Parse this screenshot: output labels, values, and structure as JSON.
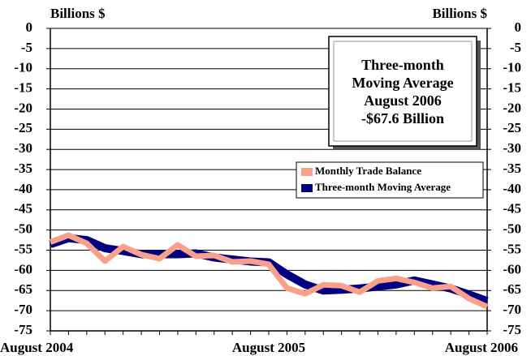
{
  "chart_data": {
    "type": "line",
    "y_axis_label": "Billions $",
    "y2_axis_label": "Billions $",
    "annotation": [
      "Three-month",
      "Moving Average",
      "August 2006",
      "-$67.6 Billion"
    ],
    "categories": [
      "August 2004",
      null,
      null,
      null,
      null,
      null,
      null,
      null,
      null,
      null,
      null,
      null,
      "August 2005",
      null,
      null,
      null,
      null,
      null,
      null,
      null,
      null,
      null,
      null,
      null,
      "August 2006"
    ],
    "series": [
      {
        "name": "Three-month Moving Average",
        "color": "#000080",
        "values": [
          -53.5,
          -52,
          -52.5,
          -54.5,
          -55.2,
          -56,
          -56,
          -56,
          -55.8,
          -56.8,
          -57.3,
          -57.8,
          -58,
          -61,
          -63.5,
          -65,
          -64.8,
          -64.5,
          -64,
          -63.5,
          -62.5,
          -63.5,
          -64.5,
          -66,
          -67.6
        ]
      },
      {
        "name": "Monthly Trade Balance",
        "color": "#f9a08a",
        "values": [
          -53,
          -51.3,
          -53.3,
          -57.7,
          -54.1,
          -56.1,
          -57.1,
          -53.7,
          -56.5,
          -56.3,
          -57.9,
          -57.7,
          -58.5,
          -64.4,
          -65.8,
          -63.6,
          -63.8,
          -65.4,
          -62.6,
          -62,
          -63,
          -64.4,
          -64,
          -67,
          -69
        ]
      }
    ],
    "ylim": [
      -75,
      0
    ],
    "yticks": [
      0,
      -5,
      -10,
      -15,
      -20,
      -25,
      -30,
      -35,
      -40,
      -45,
      -50,
      -55,
      -60,
      -65,
      -70,
      -75
    ],
    "y2lim": [
      -75,
      0
    ],
    "y2ticks": [
      0,
      -5,
      -10,
      -15,
      -20,
      -25,
      -30,
      -35,
      -40,
      -45,
      -50,
      -55,
      -60,
      -65,
      -70,
      -75
    ],
    "grid": true,
    "legend": [
      "Monthly Trade Balance",
      "Three-month Moving Average"
    ]
  }
}
